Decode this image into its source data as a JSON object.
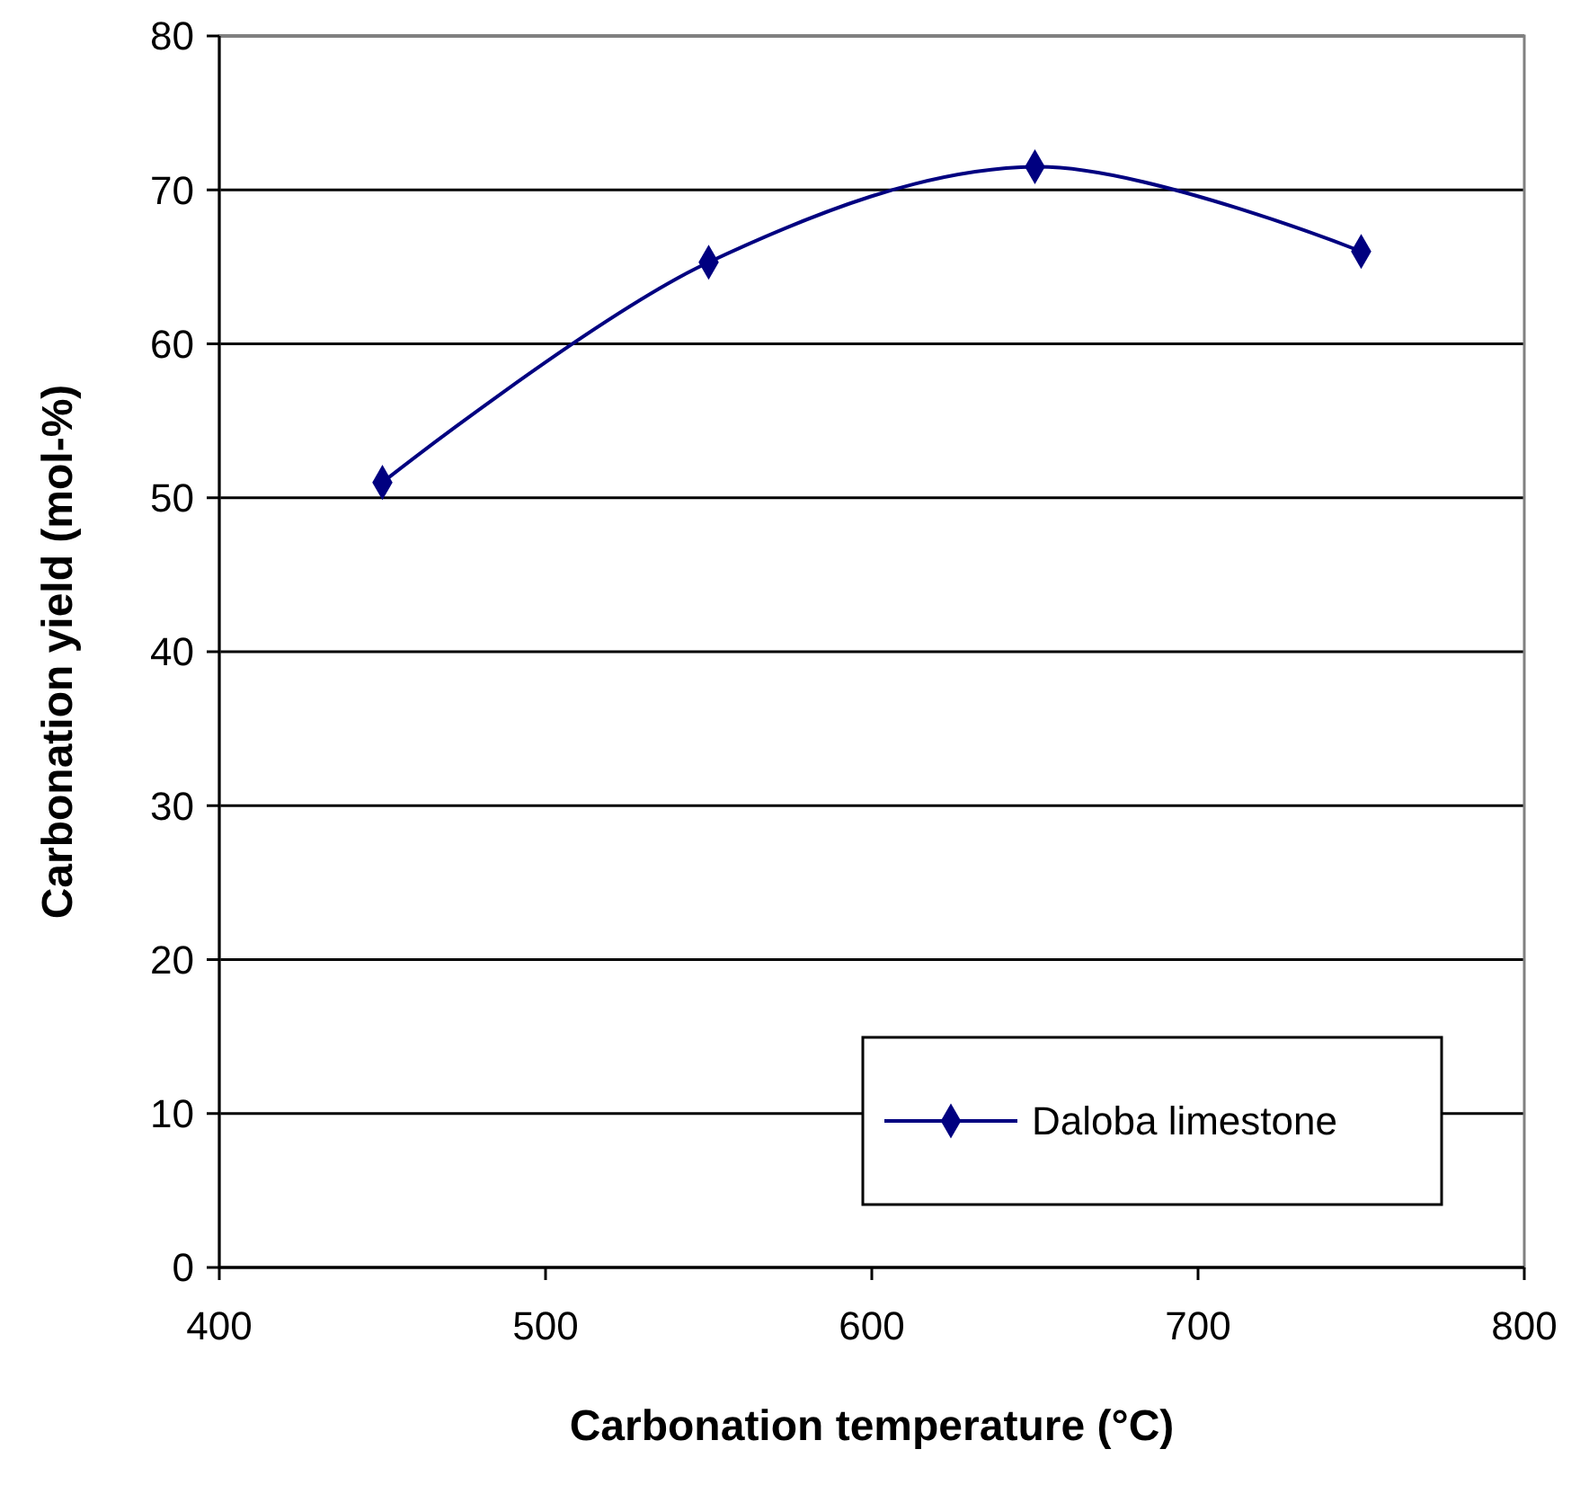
{
  "chart_data": {
    "type": "line",
    "xlabel": "Carbonation temperature (°C)",
    "ylabel": "Carbonation yield (mol-%)",
    "x": [
      450,
      550,
      650,
      750
    ],
    "series": [
      {
        "name": "Daloba limestone",
        "color": "#000080",
        "values": [
          51,
          65.3,
          71.5,
          66
        ]
      }
    ],
    "xlim": [
      400,
      800
    ],
    "xticks": [
      400,
      500,
      600,
      700,
      800
    ],
    "ylim": [
      0,
      80
    ],
    "yticks": [
      0,
      10,
      20,
      30,
      40,
      50,
      60,
      70,
      80
    ],
    "grid": "y",
    "legend": "bottom right",
    "marker": "diamond",
    "line_style": "solid"
  }
}
